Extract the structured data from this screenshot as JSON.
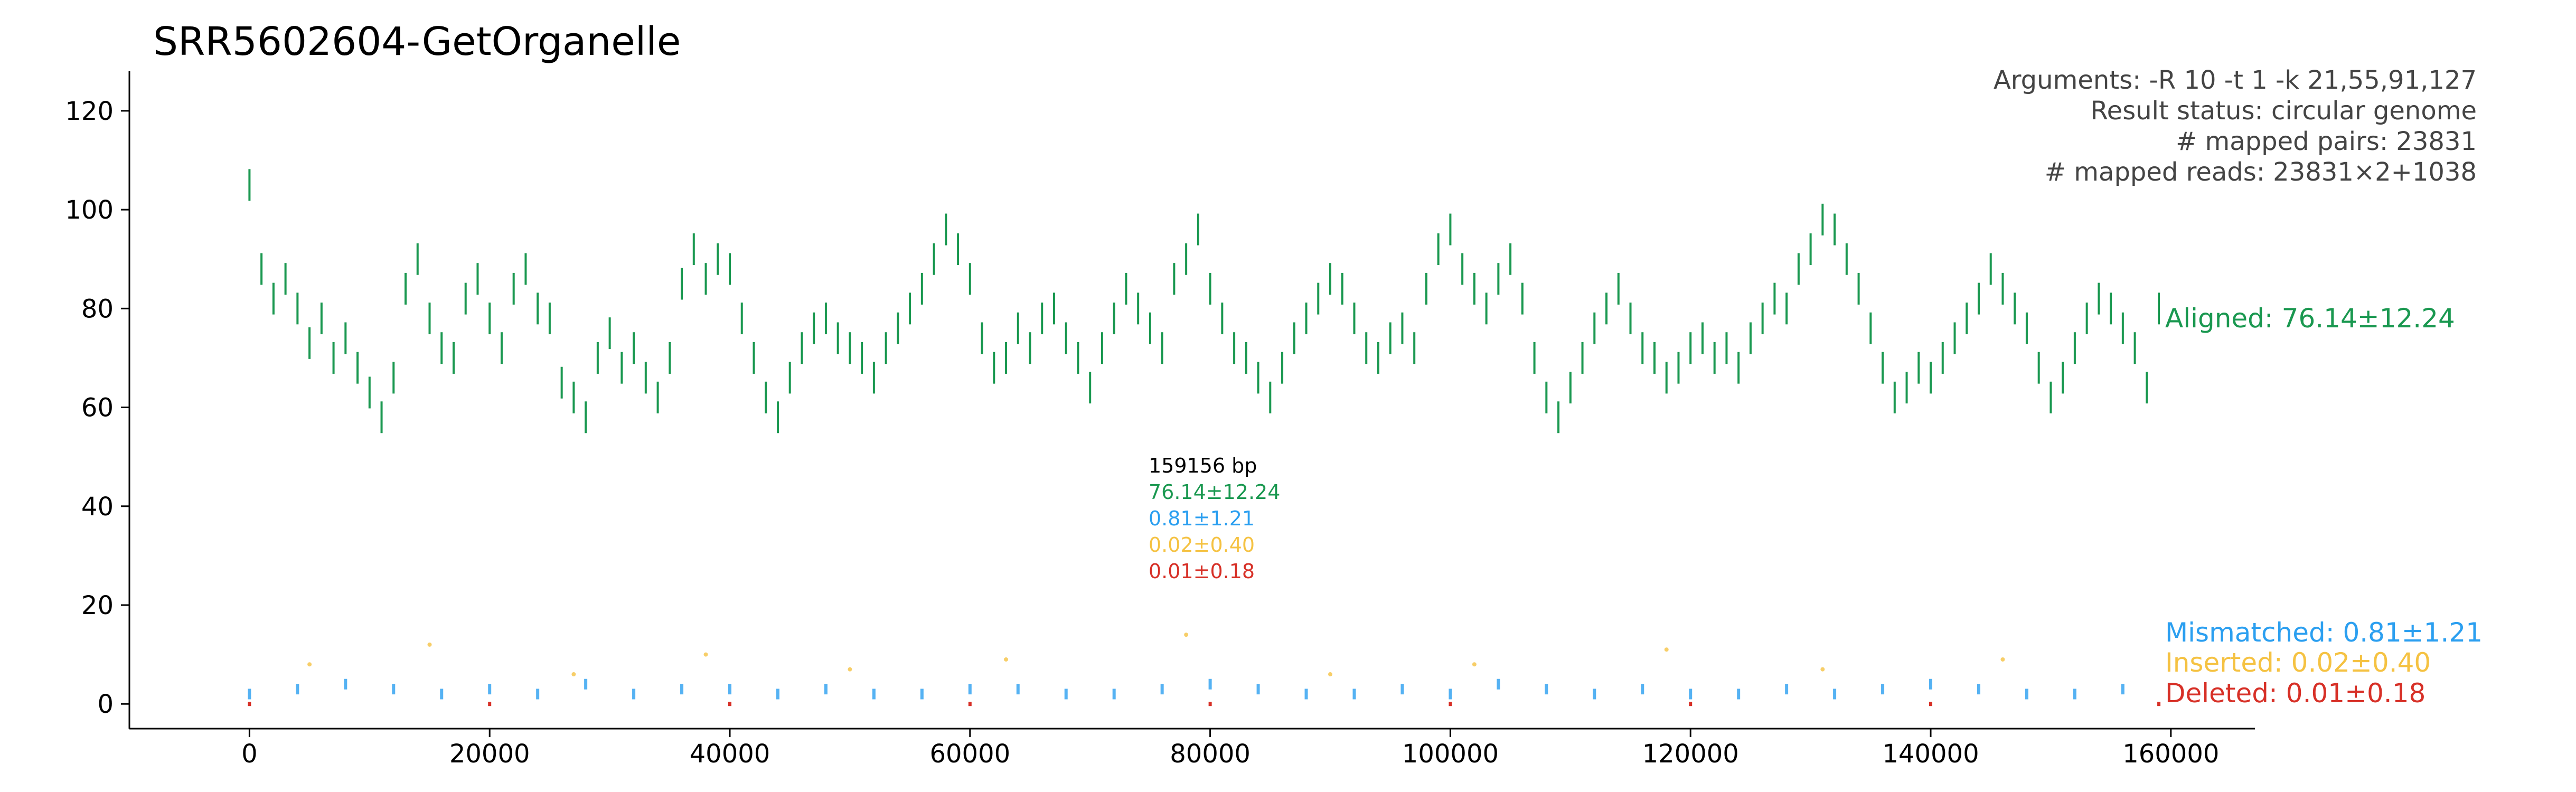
{
  "chart_data": {
    "type": "scatter",
    "title": "SRR5602604-GetOrganelle",
    "xlabel": "",
    "ylabel": "",
    "xlim": [
      -10000,
      167000
    ],
    "ylim": [
      -5,
      128
    ],
    "x_ticks": [
      0,
      20000,
      40000,
      60000,
      80000,
      100000,
      120000,
      140000,
      160000
    ],
    "y_ticks": [
      0,
      20,
      40,
      60,
      80,
      100,
      120
    ],
    "genome_length": 159156,
    "grid": false,
    "annotations": {
      "arguments": "Arguments: -R 10 -t 1 -k 21,55,91,127",
      "status": "Result status: circular genome",
      "mapped_pairs": "# mapped pairs: 23831",
      "mapped_reads": "# mapped reads: 23831×2+1038"
    },
    "center_stats": {
      "length": "159156 bp",
      "aligned": "76.14±12.24",
      "mismatched": "0.81±1.21",
      "inserted": "0.02±0.40",
      "deleted": "0.01±0.18"
    },
    "series": [
      {
        "name": "Aligned: 76.14±12.24",
        "color": "#1a9850",
        "mean": 76.14,
        "sd": 12.24,
        "x": [
          0,
          1000,
          2000,
          3000,
          4000,
          5000,
          6000,
          7000,
          8000,
          9000,
          10000,
          11000,
          12000,
          13000,
          14000,
          15000,
          16000,
          17000,
          18000,
          19000,
          20000,
          21000,
          22000,
          23000,
          24000,
          25000,
          26000,
          27000,
          28000,
          29000,
          30000,
          31000,
          32000,
          33000,
          34000,
          35000,
          36000,
          37000,
          38000,
          39000,
          40000,
          41000,
          42000,
          43000,
          44000,
          45000,
          46000,
          47000,
          48000,
          49000,
          50000,
          51000,
          52000,
          53000,
          54000,
          55000,
          56000,
          57000,
          58000,
          59000,
          60000,
          61000,
          62000,
          63000,
          64000,
          65000,
          66000,
          67000,
          68000,
          69000,
          70000,
          71000,
          72000,
          73000,
          74000,
          75000,
          76000,
          77000,
          78000,
          79000,
          80000,
          81000,
          82000,
          83000,
          84000,
          85000,
          86000,
          87000,
          88000,
          89000,
          90000,
          91000,
          92000,
          93000,
          94000,
          95000,
          96000,
          97000,
          98000,
          99000,
          100000,
          101000,
          102000,
          103000,
          104000,
          105000,
          106000,
          107000,
          108000,
          109000,
          110000,
          111000,
          112000,
          113000,
          114000,
          115000,
          116000,
          117000,
          118000,
          119000,
          120000,
          121000,
          122000,
          123000,
          124000,
          125000,
          126000,
          127000,
          128000,
          129000,
          130000,
          131000,
          132000,
          133000,
          134000,
          135000,
          136000,
          137000,
          138000,
          139000,
          140000,
          141000,
          142000,
          143000,
          144000,
          145000,
          146000,
          147000,
          148000,
          149000,
          150000,
          151000,
          152000,
          153000,
          154000,
          155000,
          156000,
          157000,
          158000,
          159000
        ],
        "y": [
          105,
          88,
          82,
          86,
          80,
          73,
          78,
          70,
          74,
          68,
          63,
          58,
          66,
          84,
          90,
          78,
          72,
          70,
          82,
          86,
          78,
          72,
          84,
          88,
          80,
          78,
          65,
          62,
          58,
          70,
          75,
          68,
          72,
          66,
          62,
          70,
          85,
          92,
          86,
          90,
          88,
          78,
          70,
          62,
          58,
          66,
          72,
          76,
          78,
          74,
          72,
          70,
          66,
          72,
          76,
          80,
          84,
          90,
          96,
          92,
          86,
          74,
          68,
          70,
          76,
          72,
          78,
          80,
          74,
          70,
          64,
          72,
          78,
          84,
          80,
          76,
          72,
          86,
          90,
          96,
          84,
          78,
          72,
          70,
          66,
          62,
          68,
          74,
          78,
          82,
          86,
          84,
          78,
          72,
          70,
          74,
          76,
          72,
          84,
          92,
          96,
          88,
          84,
          80,
          86,
          90,
          82,
          70,
          62,
          58,
          64,
          70,
          76,
          80,
          84,
          78,
          72,
          70,
          66,
          68,
          72,
          74,
          70,
          72,
          68,
          74,
          78,
          82,
          80,
          88,
          92,
          98,
          96,
          90,
          84,
          76,
          68,
          62,
          64,
          68,
          66,
          70,
          74,
          78,
          82,
          88,
          84,
          80,
          76,
          68,
          62,
          66,
          72,
          78,
          82,
          80,
          76,
          72,
          64,
          80
        ]
      },
      {
        "name": "Mismatched: 0.81±1.21",
        "color": "#2b9ff0",
        "mean": 0.81,
        "sd": 1.21,
        "x": [
          0,
          4000,
          8000,
          12000,
          16000,
          20000,
          24000,
          28000,
          32000,
          36000,
          40000,
          44000,
          48000,
          52000,
          56000,
          60000,
          64000,
          68000,
          72000,
          76000,
          80000,
          84000,
          88000,
          92000,
          96000,
          100000,
          104000,
          108000,
          112000,
          116000,
          120000,
          124000,
          128000,
          132000,
          136000,
          140000,
          144000,
          148000,
          152000,
          156000
        ],
        "y": [
          2,
          3,
          4,
          3,
          2,
          3,
          2,
          4,
          2,
          3,
          3,
          2,
          3,
          2,
          2,
          3,
          3,
          2,
          2,
          3,
          4,
          3,
          2,
          2,
          3,
          2,
          4,
          3,
          2,
          3,
          2,
          2,
          3,
          2,
          3,
          4,
          3,
          2,
          2,
          3
        ]
      },
      {
        "name": "Inserted: 0.02±0.40",
        "color": "#f5c242",
        "mean": 0.02,
        "sd": 0.4,
        "x": [
          5000,
          15000,
          27000,
          38000,
          50000,
          63000,
          78000,
          90000,
          102000,
          118000,
          131000,
          146000
        ],
        "y": [
          8,
          12,
          6,
          10,
          7,
          9,
          14,
          6,
          8,
          11,
          7,
          9
        ]
      },
      {
        "name": "Deleted: 0.01±0.18",
        "color": "#d73027",
        "mean": 0.01,
        "sd": 0.18,
        "x": [
          0,
          20000,
          40000,
          60000,
          80000,
          100000,
          120000,
          140000,
          159000
        ],
        "y": [
          0,
          0,
          0,
          0,
          0,
          0,
          0,
          0,
          0
        ]
      }
    ]
  }
}
